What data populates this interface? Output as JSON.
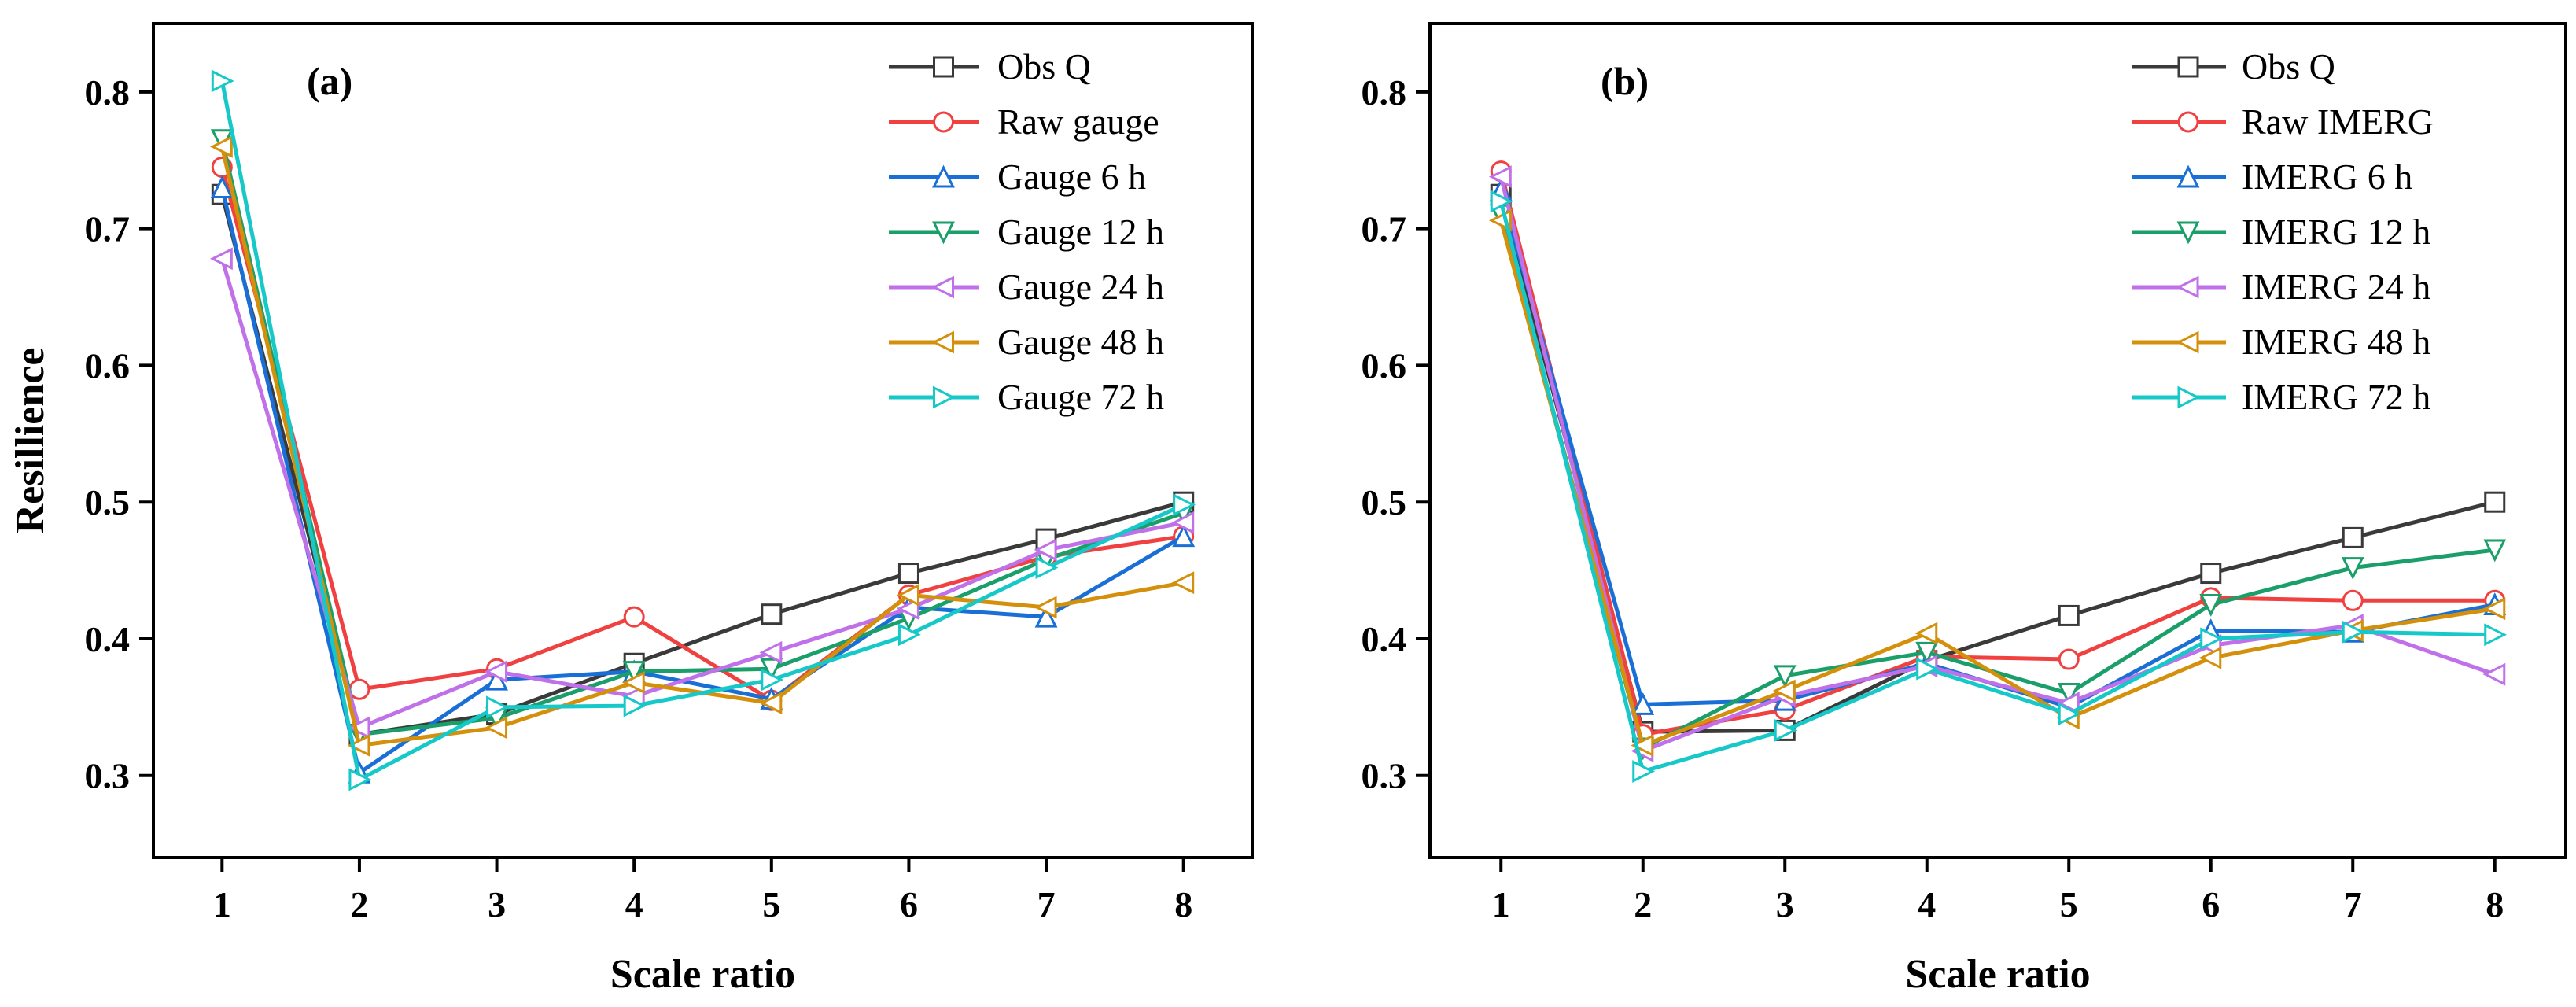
{
  "chart_data": [
    {
      "type": "line",
      "panel_label": "(a)",
      "xlabel": "Scale ratio",
      "ylabel": "Resillience",
      "xlim": [
        0.5,
        8.5
      ],
      "ylim": [
        0.24,
        0.85
      ],
      "x": [
        1,
        2,
        3,
        4,
        5,
        6,
        7,
        8
      ],
      "x_ticks": [
        "1",
        "2",
        "3",
        "4",
        "5",
        "6",
        "7",
        "8"
      ],
      "y_ticks": [
        0.3,
        0.4,
        0.5,
        0.6,
        0.7,
        0.8
      ],
      "y_tick_labels": [
        "0.3",
        "0.4",
        "0.5",
        "0.6",
        "0.7",
        "0.8"
      ],
      "grid": false,
      "legend_position": "top-right",
      "series": [
        {
          "name": "Obs Q",
          "color": "#3a3a3a",
          "marker": "square",
          "values": [
            0.725,
            0.33,
            0.345,
            0.382,
            0.418,
            0.448,
            0.473,
            0.5
          ]
        },
        {
          "name": "Raw gauge",
          "color": "#f04040",
          "marker": "circle",
          "values": [
            0.745,
            0.363,
            0.378,
            0.416,
            0.355,
            0.432,
            0.46,
            0.475
          ]
        },
        {
          "name": "Gauge 6 h",
          "color": "#1a6fd6",
          "marker": "triangle-up",
          "values": [
            0.73,
            0.302,
            0.37,
            0.376,
            0.356,
            0.423,
            0.416,
            0.475
          ]
        },
        {
          "name": "Gauge 12 h",
          "color": "#1a9e6a",
          "marker": "triangle-down",
          "values": [
            0.765,
            0.33,
            0.342,
            0.376,
            0.378,
            0.415,
            0.458,
            0.492
          ]
        },
        {
          "name": "Gauge 24 h",
          "color": "#c070e8",
          "marker": "triangle-left",
          "values": [
            0.678,
            0.335,
            0.376,
            0.358,
            0.39,
            0.422,
            0.465,
            0.485
          ]
        },
        {
          "name": "Gauge 48 h",
          "color": "#d4900a",
          "marker": "triangle-left",
          "values": [
            0.76,
            0.322,
            0.335,
            0.368,
            0.353,
            0.432,
            0.423,
            0.441
          ]
        },
        {
          "name": "Gauge 72 h",
          "color": "#16c8c8",
          "marker": "triangle-right",
          "values": [
            0.808,
            0.297,
            0.35,
            0.351,
            0.37,
            0.403,
            0.452,
            0.498
          ]
        }
      ]
    },
    {
      "type": "line",
      "panel_label": "(b)",
      "xlabel": "Scale ratio",
      "ylabel": "",
      "xlim": [
        0.5,
        8.5
      ],
      "ylim": [
        0.24,
        0.85
      ],
      "x": [
        1,
        2,
        3,
        4,
        5,
        6,
        7,
        8
      ],
      "x_ticks": [
        "1",
        "2",
        "3",
        "4",
        "5",
        "6",
        "7",
        "8"
      ],
      "y_ticks": [
        0.3,
        0.4,
        0.5,
        0.6,
        0.7,
        0.8
      ],
      "y_tick_labels": [
        "0.3",
        "0.4",
        "0.5",
        "0.6",
        "0.7",
        "0.8"
      ],
      "grid": false,
      "legend_position": "top-right",
      "series": [
        {
          "name": "Obs Q",
          "color": "#3a3a3a",
          "marker": "square",
          "values": [
            0.725,
            0.332,
            0.333,
            0.384,
            0.417,
            0.448,
            0.474,
            0.5
          ]
        },
        {
          "name": "Raw IMERG",
          "color": "#f04040",
          "marker": "circle",
          "values": [
            0.742,
            0.33,
            0.348,
            0.387,
            0.385,
            0.43,
            0.428,
            0.428
          ]
        },
        {
          "name": "IMERG 6 h",
          "color": "#1a6fd6",
          "marker": "triangle-up",
          "values": [
            0.728,
            0.352,
            0.355,
            0.382,
            0.35,
            0.406,
            0.405,
            0.425
          ]
        },
        {
          "name": "IMERG 12 h",
          "color": "#1a9e6a",
          "marker": "triangle-down",
          "values": [
            0.71,
            0.32,
            0.373,
            0.39,
            0.36,
            0.425,
            0.452,
            0.465
          ]
        },
        {
          "name": "IMERG 24 h",
          "color": "#c070e8",
          "marker": "triangle-left",
          "values": [
            0.738,
            0.318,
            0.358,
            0.38,
            0.353,
            0.395,
            0.41,
            0.374
          ]
        },
        {
          "name": "IMERG 48 h",
          "color": "#d4900a",
          "marker": "triangle-left",
          "values": [
            0.706,
            0.322,
            0.362,
            0.404,
            0.342,
            0.386,
            0.406,
            0.422
          ]
        },
        {
          "name": "IMERG 72 h",
          "color": "#16c8c8",
          "marker": "triangle-right",
          "values": [
            0.72,
            0.303,
            0.333,
            0.378,
            0.345,
            0.4,
            0.405,
            0.403
          ]
        }
      ]
    }
  ]
}
